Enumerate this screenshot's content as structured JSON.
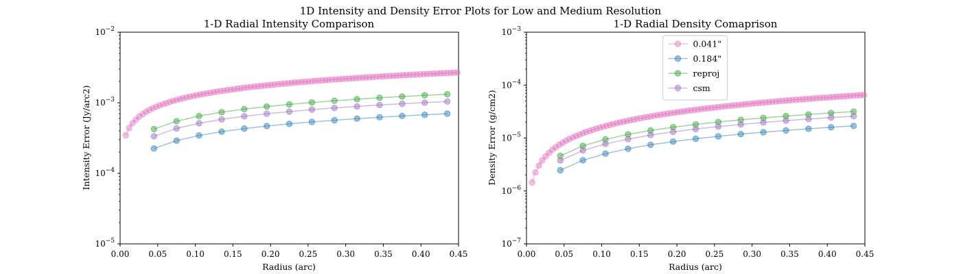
{
  "figure": {
    "suptitle": "1D Intensity and Density Error Plots for Low and Medium Resolution"
  },
  "chart_data": [
    {
      "type": "line",
      "title": "1-D Radial Intensity Comparison",
      "xlabel": "Radius (arc)",
      "ylabel": "Intensity Error (Jy/arc2)",
      "xlim": [
        0.0,
        0.45
      ],
      "ylim": [
        1e-05,
        0.01
      ],
      "yscale": "log",
      "grid": false,
      "legend": null,
      "x_ticks": [
        "0.00",
        "0.05",
        "0.10",
        "0.15",
        "0.20",
        "0.25",
        "0.30",
        "0.35",
        "0.40",
        "0.45"
      ],
      "y_ticks": [
        {
          "base": "10",
          "exp": "−5"
        },
        {
          "base": "10",
          "exp": "−4"
        },
        {
          "base": "10",
          "exp": "−3"
        },
        {
          "base": "10",
          "exp": "−2"
        }
      ],
      "series": [
        {
          "name": "0.041\"",
          "color": "#e377c2",
          "x_start": 0.0075,
          "x_step": 0.0045,
          "n": 100,
          "coef": 0.004,
          "power": 0.5
        },
        {
          "name": "0.184\"",
          "color": "#1f77b4",
          "x_start": 0.045,
          "x_step": 0.03,
          "n": 15,
          "coef": 0.00106,
          "power": 0.5
        },
        {
          "name": "reproj",
          "color": "#2ca02c",
          "x_start": 0.045,
          "x_step": 0.03,
          "n": 15,
          "coef": 0.002,
          "power": 0.5
        },
        {
          "name": "csm",
          "color": "#9467bd",
          "x_start": 0.045,
          "x_step": 0.03,
          "n": 15,
          "coef": 0.00158,
          "power": 0.5
        }
      ]
    },
    {
      "type": "line",
      "title": "1-D Radial Density Comaprison",
      "xlabel": "Radius (arc)",
      "ylabel": "Density Error (g/cm2)",
      "xlim": [
        0.0,
        0.45
      ],
      "ylim": [
        1e-07,
        0.001
      ],
      "yscale": "log",
      "grid": false,
      "legend": "upper center",
      "x_ticks": [
        "0.00",
        "0.05",
        "0.10",
        "0.15",
        "0.20",
        "0.25",
        "0.30",
        "0.35",
        "0.40",
        "0.45"
      ],
      "y_ticks": [
        {
          "base": "10",
          "exp": "−7"
        },
        {
          "base": "10",
          "exp": "−6"
        },
        {
          "base": "10",
          "exp": "−5"
        },
        {
          "base": "10",
          "exp": "−4"
        },
        {
          "base": "10",
          "exp": "−3"
        }
      ],
      "series": [
        {
          "name": "0.041\"",
          "color": "#e377c2",
          "x_start": 0.0075,
          "x_step": 0.0045,
          "n": 100,
          "coef": 0.000137,
          "power": 0.93
        },
        {
          "name": "0.184\"",
          "color": "#1f77b4",
          "x_start": 0.045,
          "x_step": 0.03,
          "n": 15,
          "coef": 3.44e-05,
          "power": 0.85
        },
        {
          "name": "reproj",
          "color": "#2ca02c",
          "x_start": 0.045,
          "x_step": 0.03,
          "n": 15,
          "coef": 6.42e-05,
          "power": 0.85
        },
        {
          "name": "csm",
          "color": "#9467bd",
          "x_start": 0.045,
          "x_step": 0.03,
          "n": 15,
          "coef": 5.25e-05,
          "power": 0.85
        }
      ]
    }
  ]
}
